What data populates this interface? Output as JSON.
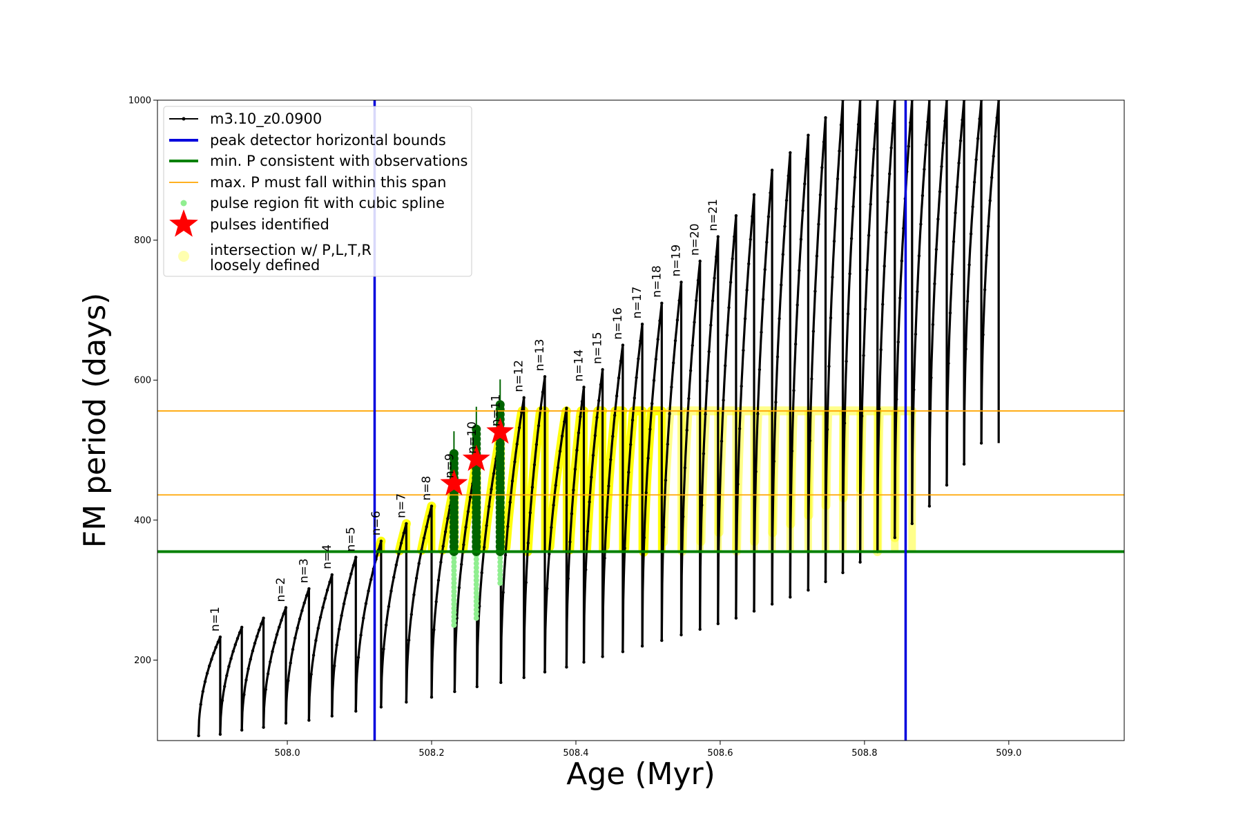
{
  "chart_data": {
    "type": "line",
    "xlabel": "Age (Myr)",
    "ylabel": "FM period (days)",
    "xlim": [
      507.82,
      509.16
    ],
    "ylim": [
      85,
      1000
    ],
    "x_ticks": [
      508.0,
      508.2,
      508.4,
      508.6,
      508.8,
      509.0
    ],
    "x_tick_labels": [
      "508.0",
      "508.2",
      "508.4",
      "508.6",
      "508.8",
      "509.0"
    ],
    "y_ticks": [
      200,
      400,
      600,
      800,
      1000
    ],
    "y_tick_labels": [
      "200",
      "400",
      "600",
      "800",
      "1000"
    ],
    "grid": false,
    "legend_position": "upper-left",
    "colors": {
      "model": "#000000",
      "bounds": "#0000dd",
      "min_p": "#008000",
      "max_p": "#ffa500",
      "spline": "#90ee90",
      "pulse_fit": "#006400",
      "star": "#ff0000",
      "intersection": "#ffff00"
    },
    "series": [
      {
        "name": "m3.10_z0.0900",
        "kind": "pulsation-cycles",
        "cycles": [
          {
            "start": 507.877,
            "end": 507.907,
            "min": 92,
            "peak": 233,
            "label": "n=1"
          },
          {
            "start": 507.907,
            "end": 507.937,
            "min": 94,
            "peak": 247,
            "label": ""
          },
          {
            "start": 507.937,
            "end": 507.967,
            "min": 100,
            "peak": 260,
            "label": ""
          },
          {
            "start": 507.967,
            "end": 507.998,
            "min": 104,
            "peak": 275,
            "label": "n=2"
          },
          {
            "start": 507.998,
            "end": 508.03,
            "min": 110,
            "peak": 302,
            "label": "n=3"
          },
          {
            "start": 508.03,
            "end": 508.062,
            "min": 114,
            "peak": 322,
            "label": "n=4"
          },
          {
            "start": 508.062,
            "end": 508.095,
            "min": 120,
            "peak": 347,
            "label": "n=5"
          },
          {
            "start": 508.095,
            "end": 508.13,
            "min": 127,
            "peak": 370,
            "label": "n=6"
          },
          {
            "start": 508.13,
            "end": 508.165,
            "min": 133,
            "peak": 395,
            "label": "n=7"
          },
          {
            "start": 508.165,
            "end": 508.2,
            "min": 140,
            "peak": 420,
            "label": "n=8"
          },
          {
            "start": 508.2,
            "end": 508.232,
            "min": 147,
            "peak": 452,
            "label": "n=9"
          },
          {
            "start": 508.232,
            "end": 508.263,
            "min": 155,
            "peak": 487,
            "label": "n=10"
          },
          {
            "start": 508.263,
            "end": 508.296,
            "min": 162,
            "peak": 526,
            "label": "n=11"
          },
          {
            "start": 508.296,
            "end": 508.328,
            "min": 168,
            "peak": 575,
            "label": "n=12"
          },
          {
            "start": 508.328,
            "end": 508.357,
            "min": 175,
            "peak": 605,
            "label": "n=13"
          },
          {
            "start": 508.357,
            "end": 508.387,
            "min": 183,
            "peak": 560,
            "label": ""
          },
          {
            "start": 508.387,
            "end": 508.411,
            "min": 190,
            "peak": 590,
            "label": "n=14"
          },
          {
            "start": 508.411,
            "end": 508.437,
            "min": 197,
            "peak": 615,
            "label": "n=15"
          },
          {
            "start": 508.437,
            "end": 508.465,
            "min": 205,
            "peak": 650,
            "label": "n=16"
          },
          {
            "start": 508.465,
            "end": 508.492,
            "min": 212,
            "peak": 680,
            "label": "n=17"
          },
          {
            "start": 508.492,
            "end": 508.519,
            "min": 220,
            "peak": 710,
            "label": "n=18"
          },
          {
            "start": 508.519,
            "end": 508.546,
            "min": 228,
            "peak": 740,
            "label": "n=19"
          },
          {
            "start": 508.546,
            "end": 508.572,
            "min": 236,
            "peak": 770,
            "label": "n=20"
          },
          {
            "start": 508.572,
            "end": 508.597,
            "min": 244,
            "peak": 805,
            "label": "n=21"
          },
          {
            "start": 508.597,
            "end": 508.622,
            "min": 252,
            "peak": 835,
            "label": ""
          },
          {
            "start": 508.622,
            "end": 508.647,
            "min": 260,
            "peak": 865,
            "label": ""
          },
          {
            "start": 508.647,
            "end": 508.672,
            "min": 270,
            "peak": 900,
            "label": ""
          },
          {
            "start": 508.672,
            "end": 508.697,
            "min": 280,
            "peak": 925,
            "label": ""
          },
          {
            "start": 508.697,
            "end": 508.722,
            "min": 290,
            "peak": 950,
            "label": ""
          },
          {
            "start": 508.722,
            "end": 508.746,
            "min": 300,
            "peak": 975,
            "label": ""
          },
          {
            "start": 508.746,
            "end": 508.77,
            "min": 312,
            "peak": 1000,
            "label": ""
          },
          {
            "start": 508.77,
            "end": 508.794,
            "min": 325,
            "peak": 1000,
            "label": ""
          },
          {
            "start": 508.794,
            "end": 508.818,
            "min": 340,
            "peak": 1000,
            "label": ""
          },
          {
            "start": 508.818,
            "end": 508.842,
            "min": 355,
            "peak": 1000,
            "label": ""
          },
          {
            "start": 508.842,
            "end": 508.866,
            "min": 375,
            "peak": 1000,
            "label": ""
          },
          {
            "start": 508.866,
            "end": 508.89,
            "min": 395,
            "peak": 1000,
            "label": ""
          },
          {
            "start": 508.89,
            "end": 508.914,
            "min": 420,
            "peak": 1000,
            "label": ""
          },
          {
            "start": 508.914,
            "end": 508.938,
            "min": 450,
            "peak": 1000,
            "label": ""
          },
          {
            "start": 508.938,
            "end": 508.962,
            "min": 480,
            "peak": 1000,
            "label": ""
          },
          {
            "start": 508.962,
            "end": 508.986,
            "min": 510,
            "peak": 1000,
            "label": ""
          }
        ]
      },
      {
        "name": "peak detector horizontal bounds",
        "kind": "vline",
        "x": [
          508.121,
          508.857
        ]
      },
      {
        "name": "min. P consistent with observations",
        "kind": "hline",
        "y": 355
      },
      {
        "name": "max. P must fall within this span",
        "kind": "hline",
        "y": [
          436,
          556
        ]
      },
      {
        "name": "pulse region fit with cubic spline",
        "kind": "points",
        "x": [
          508.231,
          508.262,
          508.295
        ],
        "y_range": [
          [
            250,
            500
          ],
          [
            260,
            495
          ],
          [
            310,
            500
          ]
        ]
      },
      {
        "name": "pulses identified",
        "kind": "star",
        "points": [
          {
            "x": 508.231,
            "y": 452
          },
          {
            "x": 508.262,
            "y": 487
          },
          {
            "x": 508.295,
            "y": 526
          }
        ]
      },
      {
        "name": "intersection w/ P,L,T,R\nloosely defined",
        "kind": "band",
        "y_range": [
          355,
          556
        ],
        "x_range": [
          508.121,
          508.857
        ]
      }
    ],
    "legend": {
      "entries": [
        {
          "label": "m3.10_z0.0900",
          "marker": "line-dot"
        },
        {
          "label": "peak detector horizontal bounds",
          "marker": "thick-line-blue"
        },
        {
          "label": "min. P consistent with observations",
          "marker": "thick-line-green"
        },
        {
          "label": "max. P must fall within this span",
          "marker": "thin-line-orange"
        },
        {
          "label": "pulse region fit with cubic spline",
          "marker": "dot-lightgreen"
        },
        {
          "label": "pulses identified",
          "marker": "star-red"
        },
        {
          "label_lines": [
            "intersection w/ P,L,T,R",
            "loosely defined"
          ],
          "marker": "dot-yellow"
        }
      ]
    }
  }
}
